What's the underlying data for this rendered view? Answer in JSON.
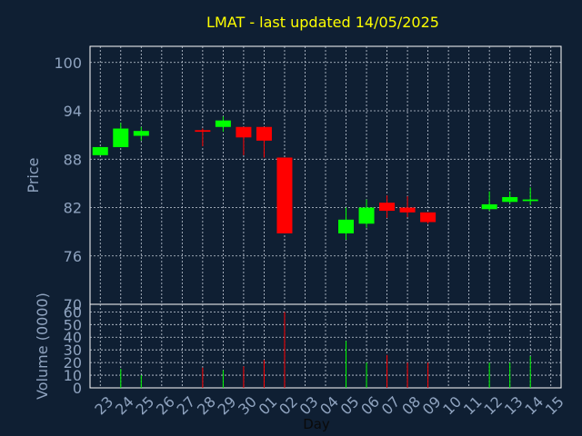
{
  "chart_data": {
    "type": "candlestick",
    "title": "LMAT - last updated 14/05/2025",
    "ylabel": "Price",
    "volume_ylabel": "Volume (0000)",
    "xlabel": "Day",
    "ylim": [
      70,
      102
    ],
    "y_ticks": [
      100,
      94,
      88,
      82,
      76,
      70
    ],
    "volume_ylim": [
      0,
      66
    ],
    "volume_ticks": [
      60,
      50,
      40,
      30,
      20,
      10,
      0
    ],
    "grid": true,
    "colors": {
      "up": "#00ff00",
      "down": "#ff0000",
      "title": "#ffff00",
      "axis": "#8fa3bf",
      "background": "#0f1f33"
    },
    "categories": [
      "23",
      "24",
      "25",
      "26",
      "27",
      "28",
      "29",
      "30",
      "01",
      "02",
      "03",
      "04",
      "05",
      "06",
      "07",
      "08",
      "09",
      "10",
      "11",
      "12",
      "13",
      "14",
      "15"
    ],
    "candles": [
      {
        "day": "23",
        "open": 88.5,
        "high": 89.5,
        "low": 88.5,
        "close": 89.5,
        "volume": 0
      },
      {
        "day": "24",
        "open": 89.5,
        "high": 92.5,
        "low": 89.5,
        "close": 91.8,
        "volume": 15
      },
      {
        "day": "25",
        "open": 90.9,
        "high": 92.0,
        "low": 90.3,
        "close": 91.5,
        "volume": 10
      },
      {
        "day": "26",
        "open": null,
        "high": null,
        "low": null,
        "close": null,
        "volume": 0
      },
      {
        "day": "27",
        "open": null,
        "high": null,
        "low": null,
        "close": null,
        "volume": 0
      },
      {
        "day": "28",
        "open": 91.6,
        "high": 91.8,
        "low": 89.6,
        "close": 91.4,
        "volume": 16
      },
      {
        "day": "29",
        "open": 92.0,
        "high": 93.3,
        "low": 91.4,
        "close": 92.8,
        "volume": 14
      },
      {
        "day": "30",
        "open": 92.0,
        "high": 92.0,
        "low": 88.5,
        "close": 90.7,
        "volume": 17
      },
      {
        "day": "01",
        "open": 92.0,
        "high": 92.0,
        "low": 88.2,
        "close": 90.3,
        "volume": 22
      },
      {
        "day": "02",
        "open": 88.2,
        "high": 88.2,
        "low": 78.8,
        "close": 78.8,
        "volume": 60
      },
      {
        "day": "03",
        "open": null,
        "high": null,
        "low": null,
        "close": null,
        "volume": 0
      },
      {
        "day": "04",
        "open": null,
        "high": null,
        "low": null,
        "close": null,
        "volume": 0
      },
      {
        "day": "05",
        "open": 78.8,
        "high": 82.0,
        "low": 78.0,
        "close": 80.5,
        "volume": 37
      },
      {
        "day": "06",
        "open": 80.0,
        "high": 83.0,
        "low": 79.5,
        "close": 82.0,
        "volume": 20
      },
      {
        "day": "07",
        "open": 82.6,
        "high": 83.5,
        "low": 80.7,
        "close": 81.6,
        "volume": 26
      },
      {
        "day": "08",
        "open": 82.0,
        "high": 83.4,
        "low": 80.8,
        "close": 81.4,
        "volume": 20
      },
      {
        "day": "09",
        "open": 81.4,
        "high": 81.4,
        "low": 80.0,
        "close": 80.2,
        "volume": 20
      },
      {
        "day": "10",
        "open": null,
        "high": null,
        "low": null,
        "close": null,
        "volume": 0
      },
      {
        "day": "11",
        "open": null,
        "high": null,
        "low": null,
        "close": null,
        "volume": 0
      },
      {
        "day": "12",
        "open": 81.8,
        "high": 84.0,
        "low": 81.6,
        "close": 82.4,
        "volume": 20
      },
      {
        "day": "13",
        "open": 82.7,
        "high": 84.0,
        "low": 82.5,
        "close": 83.3,
        "volume": 20
      },
      {
        "day": "14",
        "open": 82.8,
        "high": 84.5,
        "low": 82.3,
        "close": 83.0,
        "volume": 25
      },
      {
        "day": "15",
        "open": null,
        "high": null,
        "low": null,
        "close": null,
        "volume": 0
      }
    ]
  }
}
